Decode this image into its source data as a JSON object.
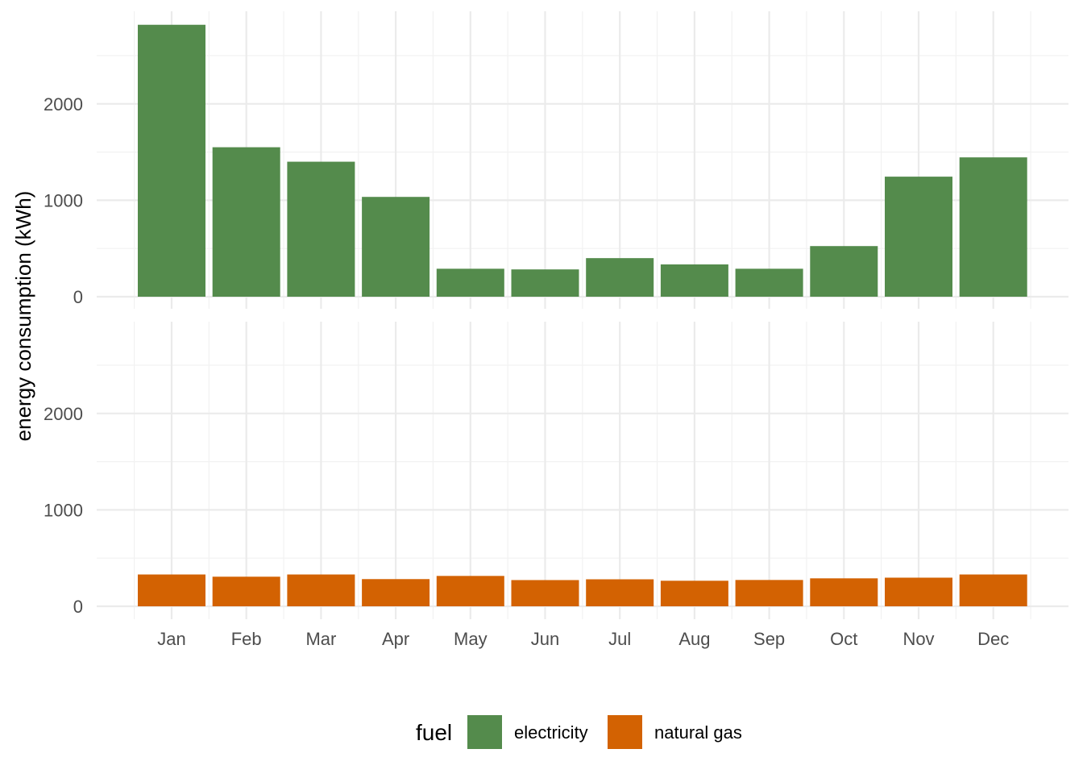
{
  "chart_data": {
    "type": "bar",
    "layout": "faceted-vertical",
    "ylabel": "energy consumption (kWh)",
    "xlabel": "",
    "categories": [
      "Jan",
      "Feb",
      "Mar",
      "Apr",
      "May",
      "Jun",
      "Jul",
      "Aug",
      "Sep",
      "Oct",
      "Nov",
      "Dec"
    ],
    "ylim": [
      0,
      2800
    ],
    "yticks": [
      0,
      1000,
      2000
    ],
    "yticks_labels": [
      "0",
      "1000",
      "2000"
    ],
    "grid": true,
    "legend": {
      "title": "fuel",
      "position": "bottom",
      "entries": [
        "electricity",
        "natural gas"
      ]
    },
    "series": [
      {
        "name": "electricity",
        "color": "#548b4c",
        "values": [
          2820,
          1550,
          1400,
          1035,
          290,
          283,
          400,
          335,
          290,
          525,
          1245,
          1445
        ]
      },
      {
        "name": "natural gas",
        "color": "#d36202",
        "values": [
          330,
          307,
          330,
          282,
          315,
          272,
          280,
          265,
          273,
          290,
          297,
          330
        ]
      }
    ]
  }
}
